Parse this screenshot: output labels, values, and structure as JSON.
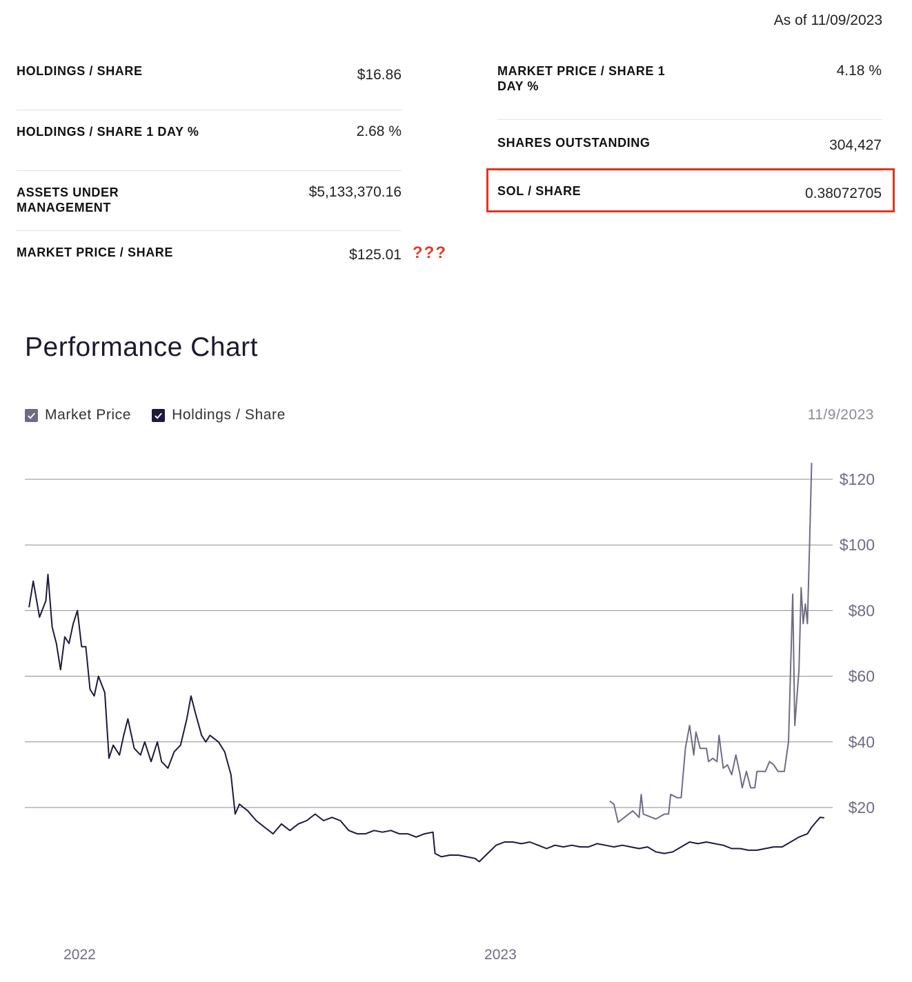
{
  "as_of": "As of 11/09/2023",
  "stats_left": [
    {
      "label": "HOLDINGS / SHARE",
      "value": "$16.86"
    },
    {
      "label": "HOLDINGS / SHARE 1 DAY %",
      "value": "2.68 %"
    },
    {
      "label": "ASSETS UNDER MANAGEMENT",
      "value": "$5,133,370.16"
    },
    {
      "label": "MARKET PRICE / SHARE",
      "value": "$125.01"
    }
  ],
  "stats_right": [
    {
      "label": "MARKET PRICE / SHARE 1 DAY %",
      "value": "4.18 %"
    },
    {
      "label": "SHARES OUTSTANDING",
      "value": "304,427"
    },
    {
      "label": "SOL / SHARE",
      "value": "0.38072705"
    }
  ],
  "annotation": "???",
  "highlight_color": "#e2331f",
  "chart_title": "Performance Chart",
  "legend": [
    {
      "name": "Market Price",
      "color": "#6f6b85",
      "checked": true
    },
    {
      "name": "Holdings / Share",
      "color": "#1d1a3a",
      "checked": true
    }
  ],
  "chart_date": "11/9/2023",
  "chart_data": {
    "type": "line",
    "x_ticks": [
      "2022",
      "2023"
    ],
    "y_ticks": [
      "$20",
      "$40",
      "$60",
      "$80",
      "$100",
      "$120"
    ],
    "ylim": [
      -20,
      125
    ],
    "xlim": [
      2021.95,
      2023.87
    ],
    "grid": true,
    "legend_position": "top-left",
    "series": [
      {
        "name": "Holdings / Share",
        "color": "#1d1a3a",
        "points": [
          [
            2021.96,
            81
          ],
          [
            2021.97,
            89
          ],
          [
            2021.985,
            78
          ],
          [
            2022.0,
            83
          ],
          [
            2022.005,
            91
          ],
          [
            2022.015,
            75
          ],
          [
            2022.025,
            70
          ],
          [
            2022.035,
            62
          ],
          [
            2022.045,
            72
          ],
          [
            2022.055,
            70
          ],
          [
            2022.065,
            76
          ],
          [
            2022.075,
            80
          ],
          [
            2022.085,
            69
          ],
          [
            2022.095,
            69
          ],
          [
            2022.105,
            56
          ],
          [
            2022.115,
            54
          ],
          [
            2022.125,
            60
          ],
          [
            2022.14,
            55
          ],
          [
            2022.15,
            35
          ],
          [
            2022.16,
            39
          ],
          [
            2022.175,
            36
          ],
          [
            2022.185,
            42
          ],
          [
            2022.195,
            47
          ],
          [
            2022.21,
            38
          ],
          [
            2022.225,
            36
          ],
          [
            2022.235,
            40
          ],
          [
            2022.25,
            34
          ],
          [
            2022.265,
            40
          ],
          [
            2022.275,
            34
          ],
          [
            2022.29,
            32
          ],
          [
            2022.305,
            37
          ],
          [
            2022.32,
            39
          ],
          [
            2022.335,
            47
          ],
          [
            2022.345,
            54
          ],
          [
            2022.355,
            49
          ],
          [
            2022.37,
            42
          ],
          [
            2022.38,
            40
          ],
          [
            2022.39,
            42
          ],
          [
            2022.41,
            40
          ],
          [
            2022.425,
            37
          ],
          [
            2022.44,
            30
          ],
          [
            2022.45,
            18
          ],
          [
            2022.46,
            21
          ],
          [
            2022.48,
            19
          ],
          [
            2022.5,
            16
          ],
          [
            2022.52,
            14
          ],
          [
            2022.54,
            12
          ],
          [
            2022.56,
            15
          ],
          [
            2022.58,
            13
          ],
          [
            2022.6,
            15
          ],
          [
            2022.62,
            16
          ],
          [
            2022.64,
            18
          ],
          [
            2022.66,
            16
          ],
          [
            2022.68,
            17
          ],
          [
            2022.7,
            16
          ],
          [
            2022.72,
            13
          ],
          [
            2022.74,
            12
          ],
          [
            2022.76,
            12
          ],
          [
            2022.78,
            13
          ],
          [
            2022.8,
            12.5
          ],
          [
            2022.82,
            13
          ],
          [
            2022.84,
            12
          ],
          [
            2022.86,
            12
          ],
          [
            2022.88,
            11
          ],
          [
            2022.9,
            12
          ],
          [
            2022.92,
            12.5
          ],
          [
            2022.925,
            6
          ],
          [
            2022.94,
            5
          ],
          [
            2022.96,
            5.5
          ],
          [
            2022.98,
            5.5
          ],
          [
            2023.0,
            5
          ],
          [
            2023.02,
            4.5
          ],
          [
            2023.03,
            3.5
          ],
          [
            2023.05,
            6
          ],
          [
            2023.07,
            8.5
          ],
          [
            2023.09,
            9.5
          ],
          [
            2023.11,
            9.5
          ],
          [
            2023.13,
            9
          ],
          [
            2023.15,
            9.5
          ],
          [
            2023.17,
            8.5
          ],
          [
            2023.19,
            7.5
          ],
          [
            2023.21,
            8.5
          ],
          [
            2023.23,
            8
          ],
          [
            2023.25,
            8.5
          ],
          [
            2023.27,
            8
          ],
          [
            2023.29,
            8
          ],
          [
            2023.31,
            9
          ],
          [
            2023.33,
            8.5
          ],
          [
            2023.35,
            8
          ],
          [
            2023.37,
            8.5
          ],
          [
            2023.39,
            8
          ],
          [
            2023.41,
            7.5
          ],
          [
            2023.43,
            8
          ],
          [
            2023.45,
            6.5
          ],
          [
            2023.47,
            6
          ],
          [
            2023.49,
            6.5
          ],
          [
            2023.51,
            8
          ],
          [
            2023.53,
            9.5
          ],
          [
            2023.55,
            9
          ],
          [
            2023.57,
            9.5
          ],
          [
            2023.59,
            9
          ],
          [
            2023.61,
            8.5
          ],
          [
            2023.63,
            7.5
          ],
          [
            2023.65,
            7.5
          ],
          [
            2023.67,
            7
          ],
          [
            2023.69,
            7
          ],
          [
            2023.71,
            7.5
          ],
          [
            2023.73,
            8
          ],
          [
            2023.75,
            8
          ],
          [
            2023.77,
            9.5
          ],
          [
            2023.79,
            11
          ],
          [
            2023.81,
            12
          ],
          [
            2023.82,
            14
          ],
          [
            2023.83,
            15.5
          ],
          [
            2023.84,
            17
          ],
          [
            2023.85,
            16.86
          ]
        ]
      },
      {
        "name": "Market Price",
        "color": "#6f6b85",
        "points": [
          [
            2023.34,
            22
          ],
          [
            2023.35,
            21
          ],
          [
            2023.36,
            15.5
          ],
          [
            2023.38,
            17.5
          ],
          [
            2023.395,
            19
          ],
          [
            2023.41,
            17
          ],
          [
            2023.415,
            24
          ],
          [
            2023.42,
            18
          ],
          [
            2023.44,
            17
          ],
          [
            2023.45,
            16.5
          ],
          [
            2023.47,
            18
          ],
          [
            2023.48,
            18
          ],
          [
            2023.485,
            24
          ],
          [
            2023.5,
            23
          ],
          [
            2023.51,
            23
          ],
          [
            2023.52,
            38
          ],
          [
            2023.53,
            45
          ],
          [
            2023.54,
            36
          ],
          [
            2023.545,
            43
          ],
          [
            2023.555,
            38
          ],
          [
            2023.57,
            38
          ],
          [
            2023.575,
            34
          ],
          [
            2023.585,
            35
          ],
          [
            2023.595,
            34
          ],
          [
            2023.6,
            42
          ],
          [
            2023.61,
            32
          ],
          [
            2023.62,
            33
          ],
          [
            2023.63,
            30
          ],
          [
            2023.64,
            36
          ],
          [
            2023.65,
            30
          ],
          [
            2023.655,
            26
          ],
          [
            2023.665,
            31
          ],
          [
            2023.675,
            26
          ],
          [
            2023.685,
            26
          ],
          [
            2023.69,
            31
          ],
          [
            2023.71,
            31
          ],
          [
            2023.72,
            34
          ],
          [
            2023.73,
            33
          ],
          [
            2023.74,
            31
          ],
          [
            2023.755,
            31
          ],
          [
            2023.765,
            40
          ],
          [
            2023.775,
            85
          ],
          [
            2023.78,
            45
          ],
          [
            2023.79,
            62
          ],
          [
            2023.795,
            87
          ],
          [
            2023.8,
            76
          ],
          [
            2023.805,
            82
          ],
          [
            2023.81,
            76
          ],
          [
            2023.815,
            100
          ],
          [
            2023.82,
            125.01
          ]
        ]
      }
    ]
  }
}
